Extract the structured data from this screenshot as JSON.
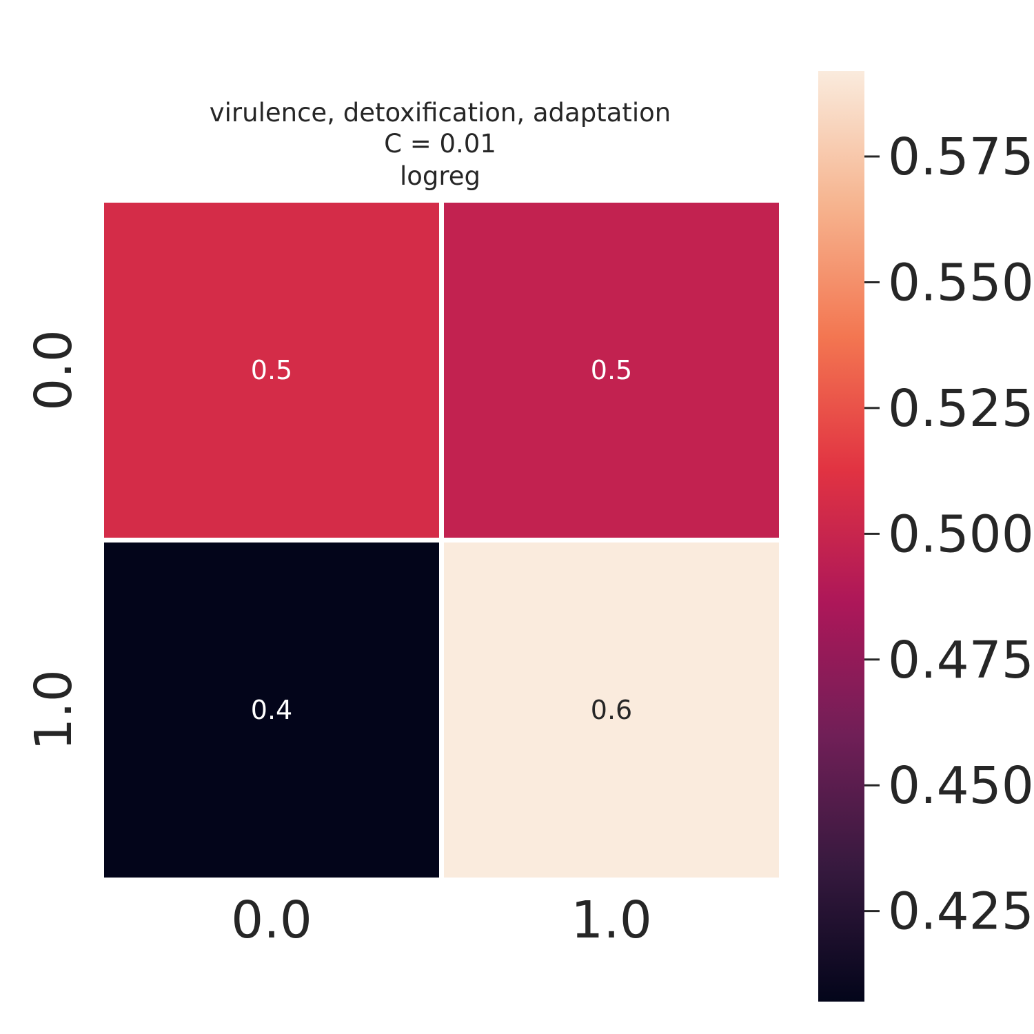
{
  "chart_data": {
    "type": "heatmap",
    "title_lines": [
      "virulence, detoxification, adaptation",
      "C = 0.01",
      "logreg"
    ],
    "x_categories": [
      "0.0",
      "1.0"
    ],
    "y_categories": [
      "0.0",
      "1.0"
    ],
    "values": [
      [
        0.506,
        0.497
      ],
      [
        0.407,
        0.592
      ]
    ],
    "cell_labels": [
      [
        "0.5",
        "0.5"
      ],
      [
        "0.4",
        "0.6"
      ]
    ],
    "colorbar": {
      "min": 0.407,
      "max": 0.592,
      "ticks": [
        0.425,
        0.45,
        0.475,
        0.5,
        0.525,
        0.55,
        0.575
      ],
      "tick_labels": [
        "0.425",
        "0.450",
        "0.475",
        "0.500",
        "0.525",
        "0.550",
        "0.575"
      ]
    },
    "colormap": [
      "#03051a",
      "#36193e",
      "#701f57",
      "#ad1759",
      "#e13342",
      "#f37651",
      "#f6b48f",
      "#faebdd"
    ],
    "grid": false,
    "cell_border_color": "#ffffff"
  }
}
